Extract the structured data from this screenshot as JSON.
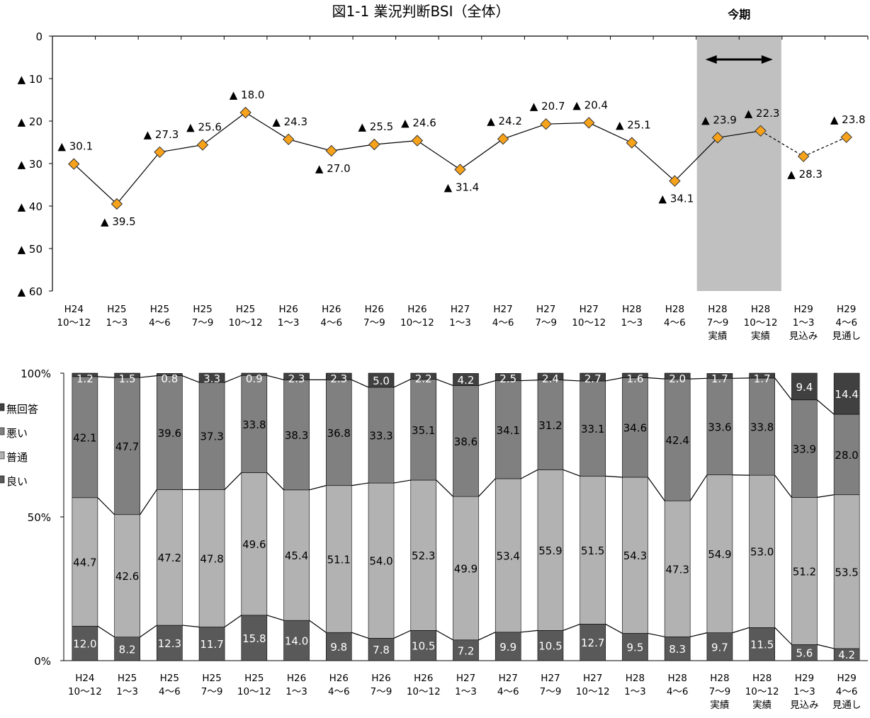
{
  "chart_data": [
    {
      "type": "line",
      "title": "図1-1 業況判断BSI（全体）",
      "period_label": "今期",
      "categories": [
        [
          "H24",
          "10～12"
        ],
        [
          "H25",
          "1～3"
        ],
        [
          "H25",
          "4～6"
        ],
        [
          "H25",
          "7～9"
        ],
        [
          "H25",
          "10～12"
        ],
        [
          "H26",
          "1～3"
        ],
        [
          "H26",
          "4～6"
        ],
        [
          "H26",
          "7～9"
        ],
        [
          "H26",
          "10～12"
        ],
        [
          "H27",
          "1～3"
        ],
        [
          "H27",
          "4～6"
        ],
        [
          "H27",
          "7～9"
        ],
        [
          "H27",
          "10～12"
        ],
        [
          "H28",
          "1～3"
        ],
        [
          "H28",
          "4～6"
        ],
        [
          "H28",
          "7～9",
          "実績"
        ],
        [
          "H28",
          "10～12",
          "実績"
        ],
        [
          "H29",
          "1～3",
          "見込み"
        ],
        [
          "H29",
          "4～6",
          "見通し"
        ]
      ],
      "values": [
        -30.1,
        -39.5,
        -27.3,
        -25.6,
        -18.0,
        -24.3,
        -27.0,
        -25.5,
        -24.6,
        -31.4,
        -24.2,
        -20.7,
        -20.4,
        -25.1,
        -34.1,
        -23.9,
        -22.3,
        -28.3,
        -23.8
      ],
      "value_labels": [
        "▲ 30.1",
        "▲ 39.5",
        "▲ 27.3",
        "▲ 25.6",
        "▲ 18.0",
        "▲ 24.3",
        "▲ 27.0",
        "▲ 25.5",
        "▲ 24.6",
        "▲ 31.4",
        "▲ 24.2",
        "▲ 20.7",
        "▲ 20.4",
        "▲ 25.1",
        "▲ 34.1",
        "▲ 23.9",
        "▲ 22.3",
        "▲ 28.3",
        "▲ 23.8"
      ],
      "label_position": [
        "above",
        "below",
        "above",
        "above",
        "above",
        "above",
        "below",
        "above",
        "above",
        "below",
        "above",
        "above",
        "above",
        "above",
        "below",
        "above",
        "above",
        "below",
        "above"
      ],
      "y_ticks": [
        0,
        -10,
        -20,
        -30,
        -40,
        -50,
        -60
      ],
      "y_tick_labels": [
        "0",
        "▲ 10",
        "▲ 20",
        "▲ 30",
        "▲ 40",
        "▲ 50",
        "▲ 60"
      ],
      "ylim": [
        -60,
        0
      ],
      "dashed_from_index": 16,
      "highlight_range": [
        15,
        16
      ],
      "marker": "diamond",
      "colors": {
        "marker_fill": "#f7a21b",
        "marker_stroke": "#333333",
        "line": "#000000",
        "highlight": "#c0c0c0"
      }
    },
    {
      "type": "bar",
      "stacked": true,
      "categories": [
        [
          "H24",
          "10～12"
        ],
        [
          "H25",
          "1～3"
        ],
        [
          "H25",
          "4～6"
        ],
        [
          "H25",
          "7～9"
        ],
        [
          "H25",
          "10～12"
        ],
        [
          "H26",
          "1～3"
        ],
        [
          "H26",
          "4～6"
        ],
        [
          "H26",
          "7～9"
        ],
        [
          "H26",
          "10～12"
        ],
        [
          "H27",
          "1～3"
        ],
        [
          "H27",
          "4～6"
        ],
        [
          "H27",
          "7～9"
        ],
        [
          "H27",
          "10～12"
        ],
        [
          "H28",
          "1～3"
        ],
        [
          "H28",
          "4～6"
        ],
        [
          "H28",
          "7～9",
          "実績"
        ],
        [
          "H28",
          "10～12",
          "実績"
        ],
        [
          "H29",
          "1～3",
          "見込み"
        ],
        [
          "H29",
          "4～6",
          "見通し"
        ]
      ],
      "series": [
        {
          "name": "良い",
          "color": "#595959",
          "values": [
            12.0,
            8.2,
            12.3,
            11.7,
            15.8,
            14.0,
            9.8,
            7.8,
            10.5,
            7.2,
            9.9,
            10.5,
            12.7,
            9.5,
            8.3,
            9.7,
            11.5,
            5.6,
            4.2
          ]
        },
        {
          "name": "普通",
          "color": "#b2b2b2",
          "values": [
            44.7,
            42.6,
            47.2,
            47.8,
            49.6,
            45.4,
            51.1,
            54.0,
            52.3,
            49.9,
            53.4,
            55.9,
            51.5,
            54.3,
            47.3,
            54.9,
            53.0,
            51.2,
            53.5
          ]
        },
        {
          "name": "悪い",
          "color": "#808080",
          "values": [
            42.1,
            47.7,
            39.6,
            37.3,
            33.8,
            38.3,
            36.8,
            33.3,
            35.1,
            38.6,
            34.1,
            31.2,
            33.1,
            34.6,
            42.4,
            33.6,
            33.8,
            33.9,
            28.0
          ]
        },
        {
          "name": "無回答",
          "color": "#404040",
          "values": [
            1.2,
            1.5,
            0.8,
            3.3,
            0.9,
            2.3,
            2.3,
            5.0,
            2.2,
            4.2,
            2.5,
            2.4,
            2.7,
            1.6,
            2.0,
            1.7,
            1.7,
            9.4,
            14.4
          ]
        }
      ],
      "y_tick_labels": [
        "100%",
        "50%",
        "0%"
      ],
      "ylim": [
        0,
        100
      ],
      "legend_order": [
        "無回答",
        "悪い",
        "普通",
        "良い"
      ],
      "legend_position": "left"
    }
  ]
}
